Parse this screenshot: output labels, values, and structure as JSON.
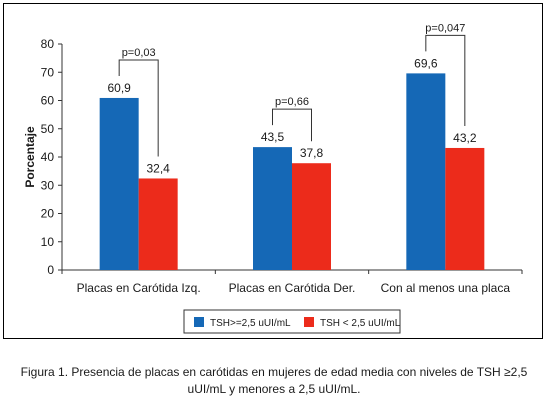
{
  "chart_data": {
    "type": "bar",
    "ylabel": "Porcentaje",
    "ylim": [
      0,
      80
    ],
    "yticks": [
      0,
      10,
      20,
      30,
      40,
      50,
      60,
      70,
      80
    ],
    "categories": [
      "Placas en Carótida Izq.",
      "Placas en Carótida Der.",
      "Con al menos una placa"
    ],
    "series": [
      {
        "name": "TSH>=2,5 uUI/mL",
        "values": [
          60.9,
          43.5,
          69.6
        ],
        "labels": [
          "60,9",
          "43,5",
          "69,6"
        ],
        "color": "#1568b6"
      },
      {
        "name": "TSH < 2,5 uUI/mL",
        "values": [
          32.4,
          37.8,
          43.2
        ],
        "labels": [
          "32,4",
          "37,8",
          "43,2"
        ],
        "color": "#ec2b1b"
      }
    ],
    "pvalues": [
      "p=0,03",
      "p=0,66",
      "p=0,047"
    ],
    "grid": false,
    "legend_position": "bottom"
  },
  "caption": {
    "line1": "Figura 1. Presencia de placas en carótidas en mujeres de edad media con niveles de TSH ≥2,5",
    "line2": "uUI/mL y menores a 2,5 uUI/mL."
  }
}
